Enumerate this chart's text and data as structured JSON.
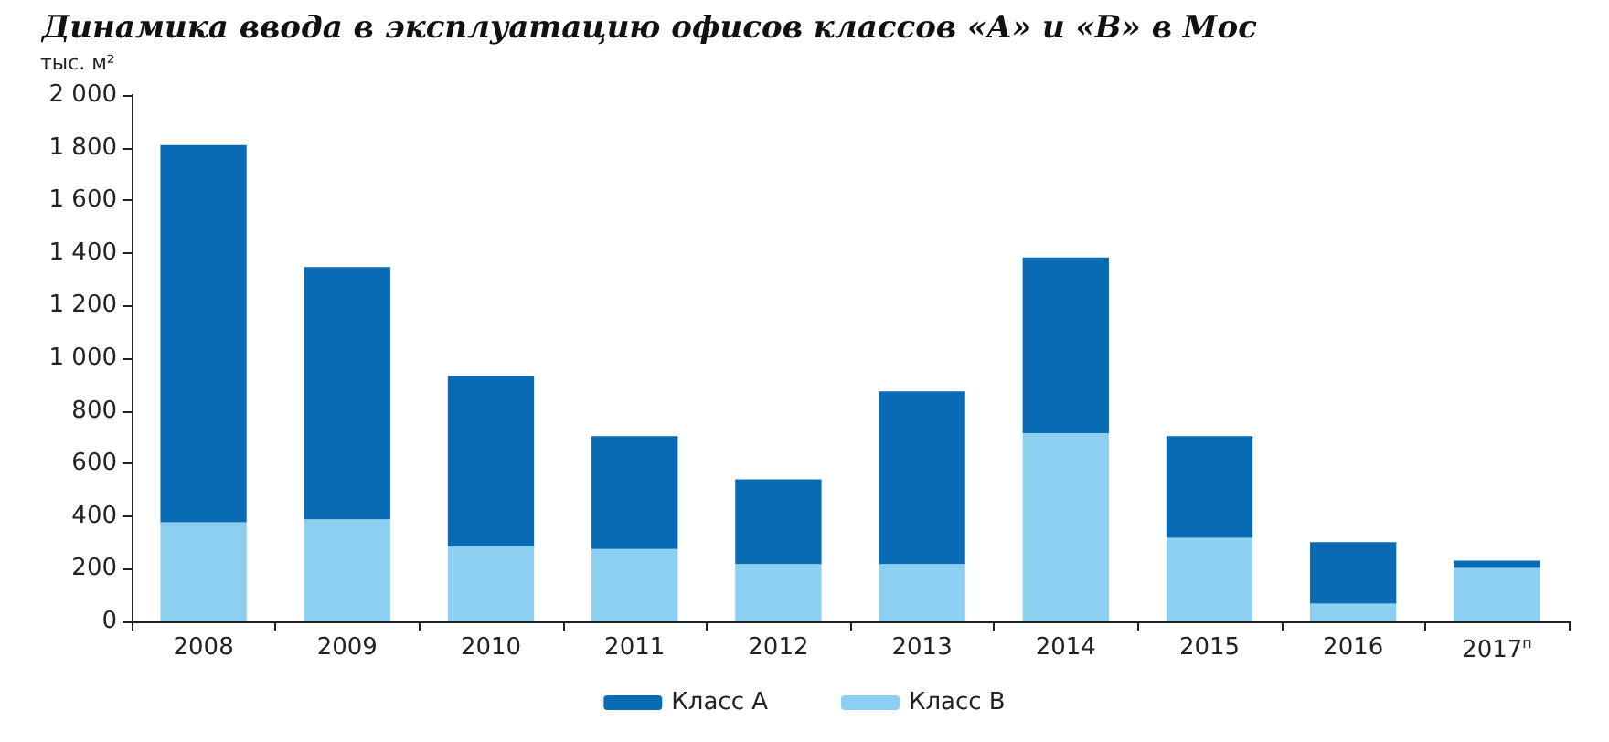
{
  "chart_data": {
    "type": "bar",
    "title": "Динамика ввода в эксплуатацию офисов классов «А» и «В» в Мос",
    "ylabel": "тыс. м²",
    "categories": [
      "2008",
      "2009",
      "2010",
      "2011",
      "2012",
      "2013",
      "2014",
      "2015",
      "2016",
      "2017$^{п}$"
    ],
    "stacked": true,
    "series": [
      {
        "name": "Класс В",
        "color": "#8ccff0",
        "values": [
          377,
          388,
          285,
          275,
          218,
          218,
          715,
          318,
          68,
          203
        ]
      },
      {
        "name": "Класс А",
        "color": "#0a6bb5",
        "values": [
          1433,
          958,
          647,
          429,
          322,
          656,
          668,
          386,
          233,
          28
        ]
      }
    ],
    "ylim": [
      0,
      2000
    ],
    "yticks": [
      {
        "value": 0,
        "label": "0"
      },
      {
        "value": 200,
        "label": "200"
      },
      {
        "value": 400,
        "label": "400"
      },
      {
        "value": 600,
        "label": "600"
      },
      {
        "value": 800,
        "label": "800"
      },
      {
        "value": 1000,
        "label": "1 000"
      },
      {
        "value": 1200,
        "label": "1 200"
      },
      {
        "value": 1400,
        "label": "1 400"
      },
      {
        "value": 1600,
        "label": "1 600"
      },
      {
        "value": 1800,
        "label": "1 800"
      },
      {
        "value": 2000,
        "label": "2 000"
      }
    ],
    "grid": false,
    "legend": "bottom"
  }
}
